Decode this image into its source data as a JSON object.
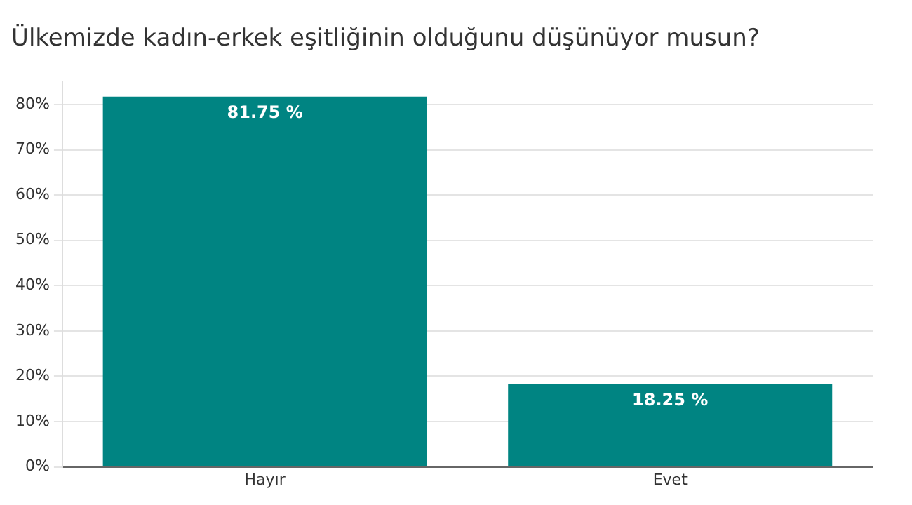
{
  "chart_data": {
    "type": "bar",
    "title": "Ülkemizde kadın-erkek eşitliğinin olduğunu düşünüyor musun?",
    "categories": [
      "Hayır",
      "Evet"
    ],
    "values": [
      81.75,
      18.25
    ],
    "color": "#008482",
    "value_labels": [
      "81.75 %",
      "18.25 %"
    ],
    "ylim": [
      0,
      85
    ],
    "yticks": [
      {
        "value": 0,
        "label": "0%"
      },
      {
        "value": 10,
        "label": "10%"
      },
      {
        "value": 20,
        "label": "20%"
      },
      {
        "value": 30,
        "label": "30%"
      },
      {
        "value": 40,
        "label": "40%"
      },
      {
        "value": 50,
        "label": "50%"
      },
      {
        "value": 60,
        "label": "60%"
      },
      {
        "value": 70,
        "label": "70%"
      },
      {
        "value": 80,
        "label": "80%"
      }
    ],
    "grid": "y",
    "legend": false
  }
}
